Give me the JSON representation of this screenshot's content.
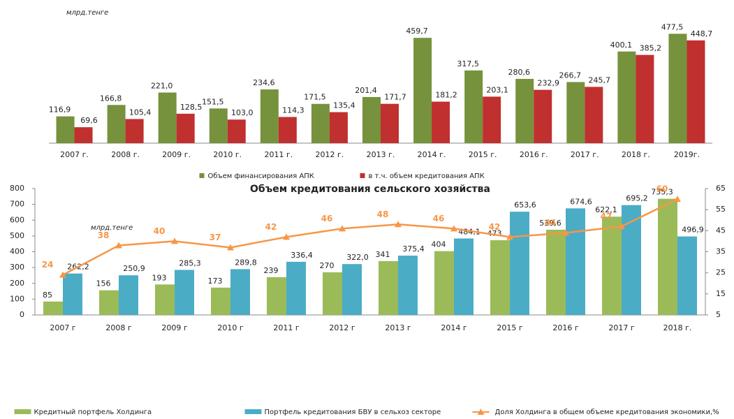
{
  "chart_data": [
    {
      "type": "bar",
      "annotation": "млрд.тенге",
      "categories": [
        "2007 г.",
        "2008 г.",
        "2009 г.",
        "2010 г.",
        "2011 г.",
        "2012 г.",
        "2013 г.",
        "2014 г.",
        "2015 г.",
        "2016 г.",
        "2017 г.",
        "2018 г.",
        "2019г."
      ],
      "ylim": [
        0,
        500
      ],
      "series": [
        {
          "name": "Объем финансирования АПК",
          "color": "#76923c",
          "values": [
            116.9,
            166.8,
            221.0,
            151.5,
            234.6,
            171.5,
            201.4,
            459.7,
            317.5,
            280.6,
            266.7,
            400.1,
            477.5
          ],
          "value_labels": [
            "116,9",
            "166,8",
            "221,0",
            "151,5",
            "234,6",
            "171,5",
            "201,4",
            "459,7",
            "317,5",
            "280,6",
            "266,7",
            "400,1",
            "477,5"
          ]
        },
        {
          "name": "в т.ч. объем кредитования АПК",
          "color": "#c0302f",
          "values": [
            69.6,
            105.4,
            128.5,
            103.0,
            114.3,
            135.4,
            171.7,
            181.2,
            203.1,
            232.9,
            245.7,
            385.2,
            448.7
          ],
          "value_labels": [
            "69,6",
            "105,4",
            "128,5",
            "103,0",
            "114,3",
            "135,4",
            "171,7",
            "181,2",
            "203,1",
            "232,9",
            "245,7",
            "385,2",
            "448,7"
          ]
        }
      ]
    },
    {
      "type": "bar",
      "title": "Объем кредитования сельского хозяйства",
      "annotation": "млрд.тенге",
      "categories": [
        "2007 г",
        "2008 г",
        "2009 г",
        "2010 г",
        "2011 г",
        "2012 г",
        "2013 г",
        "2014 г",
        "2015 г",
        "2016 г",
        "2017 г",
        "2018 г."
      ],
      "ylim": [
        0,
        800
      ],
      "yticks": [
        0,
        100,
        200,
        300,
        400,
        500,
        600,
        700,
        800
      ],
      "y2lim": [
        5,
        65
      ],
      "y2ticks": [
        5,
        15,
        25,
        35,
        45,
        55,
        65
      ],
      "series": [
        {
          "name": "Кредитный портфель Холдинга",
          "color": "#9bbb59",
          "values": [
            85,
            156,
            193,
            173,
            239,
            270,
            341,
            404,
            473,
            539.6,
            622.1,
            735.3
          ],
          "value_labels": [
            "85",
            "156",
            "193",
            "173",
            "239",
            "270",
            "341",
            "404",
            "473",
            "539,6",
            "622,1",
            "735,3"
          ]
        },
        {
          "name": "Портфель кредитования БВУ в сельхоз секторе",
          "color": "#4bacc6",
          "values": [
            262.2,
            250.9,
            285.3,
            289.8,
            336.4,
            322.0,
            375.4,
            484.1,
            653.6,
            674.6,
            695.2,
            496.9
          ],
          "value_labels": [
            "262,2",
            "250,9",
            "285,3",
            "289,8",
            "336,4",
            "322,0",
            "375,4",
            "484,1",
            "653,6",
            "674,6",
            "695,2",
            "496,9"
          ]
        },
        {
          "name": "Доля Холдинга в общем объеме кредитования экономики,%",
          "color": "#f79646",
          "type": "line",
          "axis": "y2",
          "values": [
            24,
            38,
            40,
            37,
            42,
            46,
            48,
            46,
            42,
            44,
            47,
            60
          ]
        }
      ]
    }
  ]
}
